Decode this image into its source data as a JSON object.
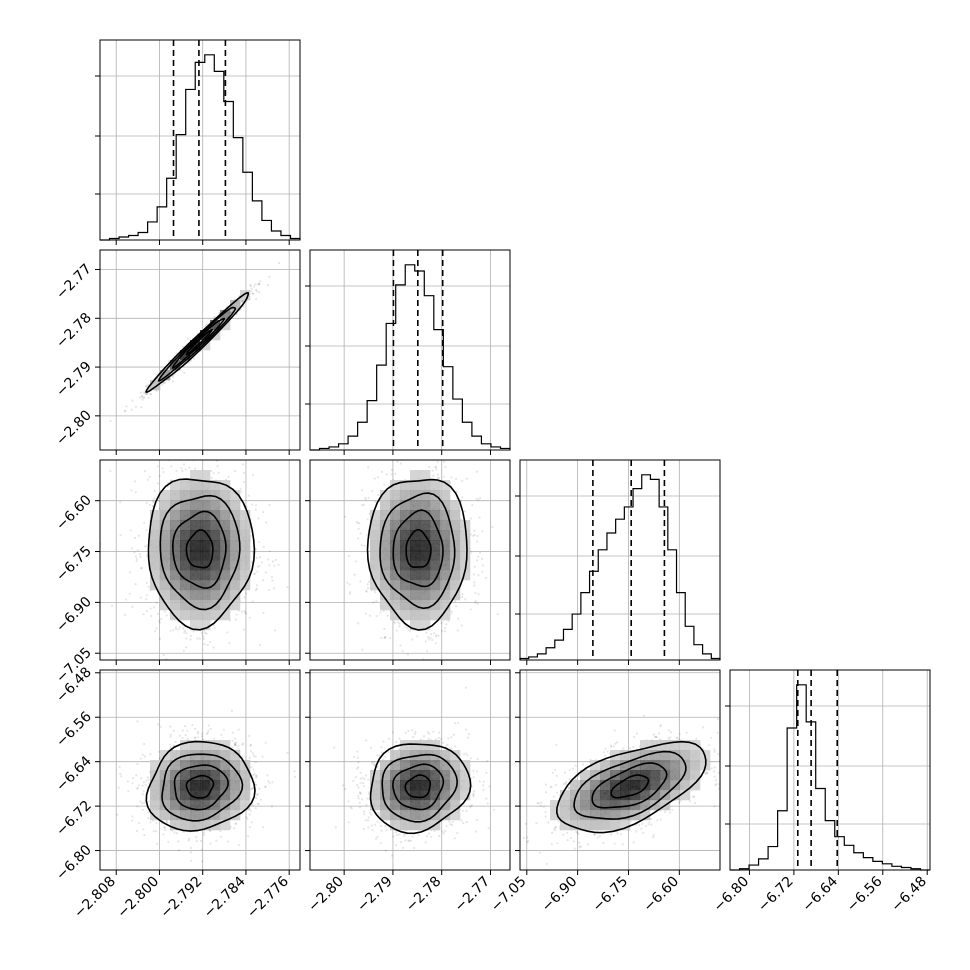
{
  "chart_data": {
    "type": "corner",
    "grid": true,
    "parameters": [
      {
        "range": [
          -2.811,
          -2.774
        ],
        "ticks": [
          -2.808,
          -2.8,
          -2.792,
          -2.784,
          -2.776
        ],
        "tick_labels": [
          "−2.808",
          "−2.800",
          "−2.792",
          "−2.784",
          "−2.776"
        ],
        "quantiles": [
          -2.7974,
          -2.7927,
          -2.7878
        ],
        "hist": [
          0,
          1,
          2,
          3,
          5,
          12,
          22,
          41,
          70,
          100,
          118,
          123,
          112,
          92,
          68,
          45,
          26,
          13,
          6,
          3,
          1
        ]
      },
      {
        "range": [
          -2.807,
          -2.766
        ],
        "ticks": [
          -2.8,
          -2.79,
          -2.78,
          -2.77
        ],
        "tick_labels": [
          "−2.80",
          "−2.79",
          "−2.78",
          "−2.77"
        ],
        "quantiles": [
          -2.7899,
          -2.7849,
          -2.7798
        ],
        "hist": [
          0,
          1,
          2,
          4,
          9,
          18,
          32,
          55,
          82,
          107,
          120,
          116,
          100,
          78,
          54,
          33,
          18,
          9,
          4,
          2,
          1
        ]
      },
      {
        "range": [
          -7.07,
          -6.48
        ],
        "ticks": [
          -7.05,
          -6.9,
          -6.75,
          -6.6
        ],
        "tick_labels": [
          "−7.05",
          "−6.90",
          "−6.75",
          "−6.60"
        ],
        "quantiles": [
          -6.855,
          -6.742,
          -6.644
        ],
        "hist": [
          1,
          2,
          4,
          8,
          13,
          20,
          30,
          44,
          58,
          72,
          83,
          92,
          100,
          112,
          121,
          118,
          100,
          72,
          44,
          22,
          10,
          4,
          1
        ]
      },
      {
        "range": [
          -6.835,
          -6.475
        ],
        "ticks": [
          -6.8,
          -6.72,
          -6.64,
          -6.56,
          -6.48
        ],
        "tick_labels": [
          "−6.80",
          "−6.72",
          "−6.64",
          "−6.56",
          "−6.48"
        ],
        "quantiles": [
          -6.713,
          -6.689,
          -6.642
        ],
        "hist": [
          0,
          1,
          4,
          9,
          19,
          48,
          115,
          150,
          120,
          66,
          40,
          27,
          20,
          14,
          10,
          7,
          5,
          3,
          2,
          1,
          0
        ]
      }
    ],
    "pairs": [
      {
        "row": 1,
        "col": 0,
        "style": "narrow",
        "corr": 0.985,
        "center": [
          -2.7927,
          -2.7849
        ],
        "spread": [
          0.0047,
          0.005
        ]
      },
      {
        "row": 2,
        "col": 0,
        "style": "wide",
        "corr": 0.0,
        "center": [
          -2.7925,
          -6.745
        ],
        "spread": [
          0.0049,
          0.11
        ]
      },
      {
        "row": 2,
        "col": 1,
        "style": "wide",
        "corr": 0.0,
        "center": [
          -2.7848,
          -6.745
        ],
        "spread": [
          0.0051,
          0.11
        ]
      },
      {
        "row": 3,
        "col": 0,
        "style": "wide",
        "corr": 0.1,
        "center": [
          -2.7925,
          -6.685
        ],
        "spread": [
          0.0049,
          0.04
        ]
      },
      {
        "row": 3,
        "col": 1,
        "style": "wide",
        "corr": 0.1,
        "center": [
          -2.7848,
          -6.685
        ],
        "spread": [
          0.0051,
          0.04
        ]
      },
      {
        "row": 3,
        "col": 2,
        "style": "wide",
        "corr": 0.55,
        "center": [
          -6.745,
          -6.685
        ],
        "spread": [
          0.11,
          0.04
        ]
      }
    ]
  }
}
